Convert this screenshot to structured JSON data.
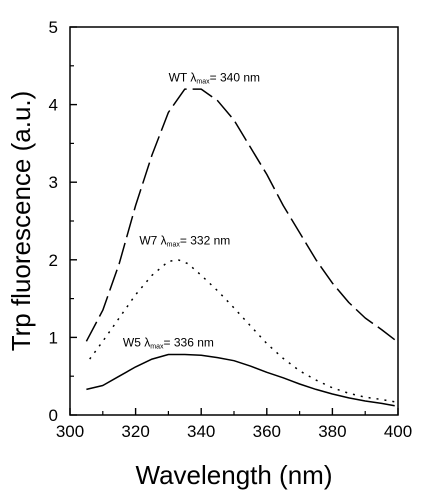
{
  "chart_data": {
    "type": "line",
    "title": "",
    "xlabel": "Wavelength (nm)",
    "ylabel": "Trp fluorescence (a.u.)",
    "xlim": [
      300,
      400
    ],
    "ylim": [
      0,
      5
    ],
    "xticks": [
      300,
      320,
      340,
      360,
      380,
      400
    ],
    "yticks": [
      0,
      1,
      2,
      3,
      4,
      5
    ],
    "grid": false,
    "series": [
      {
        "name": "",
        "style": "long-dash",
        "x": [
          305,
          310,
          315,
          320,
          325,
          330,
          335,
          340,
          345,
          350,
          355,
          360,
          365,
          370,
          375,
          380,
          385,
          390,
          395,
          399
        ],
        "y": [
          0.95,
          1.35,
          1.95,
          2.7,
          3.35,
          3.9,
          4.2,
          4.2,
          4.05,
          3.8,
          3.45,
          3.1,
          2.7,
          2.35,
          2.0,
          1.7,
          1.45,
          1.25,
          1.1,
          0.97
        ]
      },
      {
        "name": "",
        "style": "dotted",
        "x": [
          306,
          310,
          315,
          320,
          325,
          330,
          333,
          336,
          340,
          345,
          350,
          355,
          360,
          365,
          370,
          375,
          380,
          385,
          390,
          395,
          399
        ],
        "y": [
          0.72,
          0.95,
          1.25,
          1.55,
          1.8,
          1.98,
          2.0,
          1.95,
          1.8,
          1.6,
          1.38,
          1.15,
          0.92,
          0.73,
          0.57,
          0.45,
          0.35,
          0.28,
          0.23,
          0.2,
          0.17
        ]
      },
      {
        "name": "",
        "style": "solid",
        "x": [
          305,
          310,
          315,
          320,
          325,
          330,
          335,
          340,
          345,
          350,
          355,
          360,
          365,
          370,
          375,
          380,
          385,
          390,
          395,
          399
        ],
        "y": [
          0.33,
          0.38,
          0.5,
          0.62,
          0.72,
          0.78,
          0.78,
          0.77,
          0.74,
          0.7,
          0.63,
          0.55,
          0.48,
          0.4,
          0.33,
          0.27,
          0.22,
          0.18,
          0.15,
          0.12
        ]
      }
    ],
    "annotations": [
      {
        "prefix": "WT λ",
        "sub": "max",
        "suffix": "= 340 nm",
        "x": 344,
        "y": 4.3
      },
      {
        "prefix": "W7 λ",
        "sub": "max",
        "suffix": "= 332 nm",
        "x": 335,
        "y": 2.2
      },
      {
        "prefix": "W5 λ",
        "sub": "max",
        "suffix": "= 336 nm",
        "x": 330,
        "y": 0.88
      }
    ]
  }
}
